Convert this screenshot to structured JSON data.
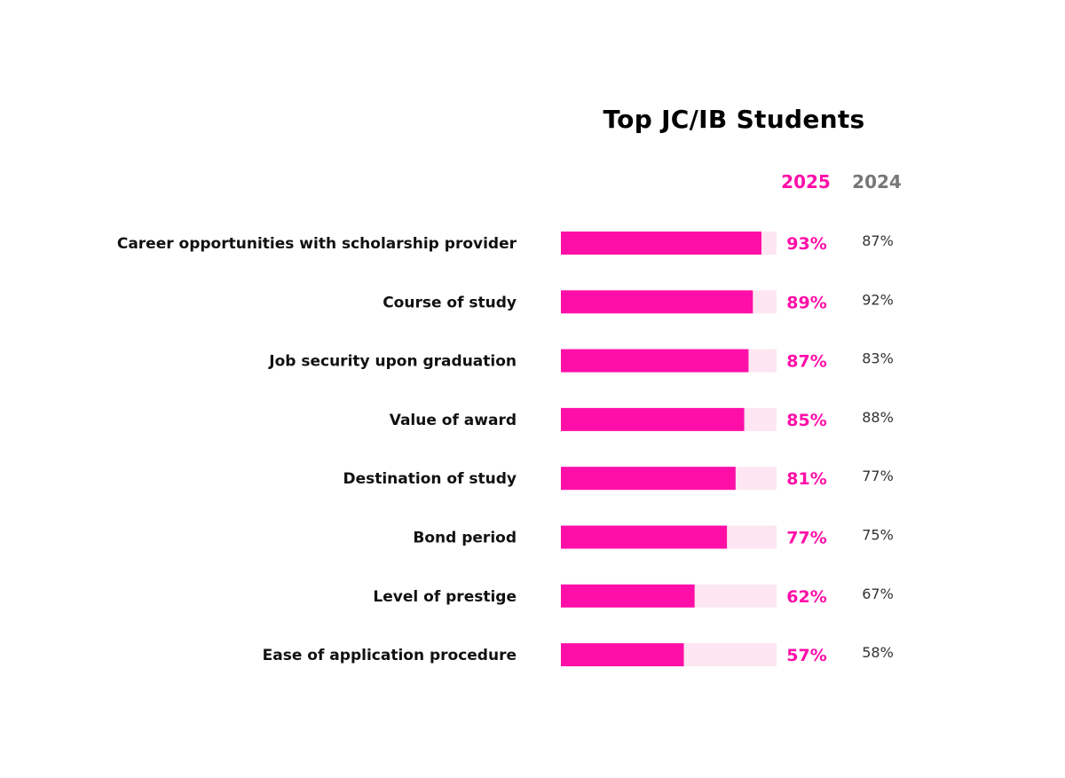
{
  "chart_data": {
    "type": "bar",
    "title": "Top JC/IB Students",
    "categories": [
      "Career opportunities with scholarship provider",
      "Course of study",
      "Job security upon graduation",
      "Value of award",
      "Destination of study",
      "Bond period",
      "Level of prestige",
      "Ease of application procedure"
    ],
    "series": [
      {
        "name": "2025",
        "values": [
          93,
          89,
          87,
          85,
          81,
          77,
          62,
          57
        ],
        "labels": [
          "93%",
          "89%",
          "87%",
          "85%",
          "81%",
          "77%",
          "62%",
          "57%"
        ],
        "color": "#FF0FA8"
      },
      {
        "name": "2024",
        "values": [
          87,
          92,
          83,
          88,
          77,
          75,
          67,
          58
        ],
        "labels": [
          "87%",
          "92%",
          "83%",
          "88%",
          "77%",
          "75%",
          "67%",
          "58%"
        ],
        "color": "#555555"
      }
    ],
    "xlim": [
      0,
      100
    ],
    "track_color": "#FDE6F1",
    "grid": false,
    "legend": "top-right"
  }
}
